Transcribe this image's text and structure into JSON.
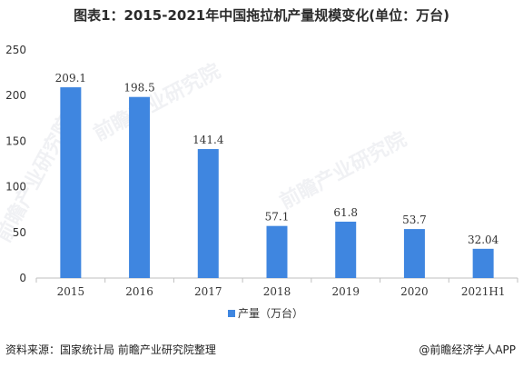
{
  "title": "图表1：2015-2021年中国拖拉机产量规模变化(单位：万台)",
  "source": "资料来源：国家统计局 前瞻产业研究院整理",
  "credit": "@前瞻经济学人APP",
  "watermark": "前瞻产业研究院",
  "colors": {
    "bar": "#3f86e0",
    "axis": "#bfbfbf",
    "text": "#333333"
  },
  "chart_data": {
    "type": "bar",
    "categories": [
      "2015",
      "2016",
      "2017",
      "2018",
      "2019",
      "2020",
      "2021H1"
    ],
    "series": [
      {
        "name": "产量（万台）",
        "values": [
          209.1,
          198.5,
          141.4,
          57.1,
          61.8,
          53.7,
          32.04
        ]
      }
    ],
    "value_labels": [
      "209.1",
      "198.5",
      "141.4",
      "57.1",
      "61.8",
      "53.7",
      "32.04"
    ],
    "ylim": [
      0,
      250
    ],
    "yticks": [
      0,
      50,
      100,
      150,
      200,
      250
    ],
    "grid": false,
    "legend": "bottom-center"
  }
}
